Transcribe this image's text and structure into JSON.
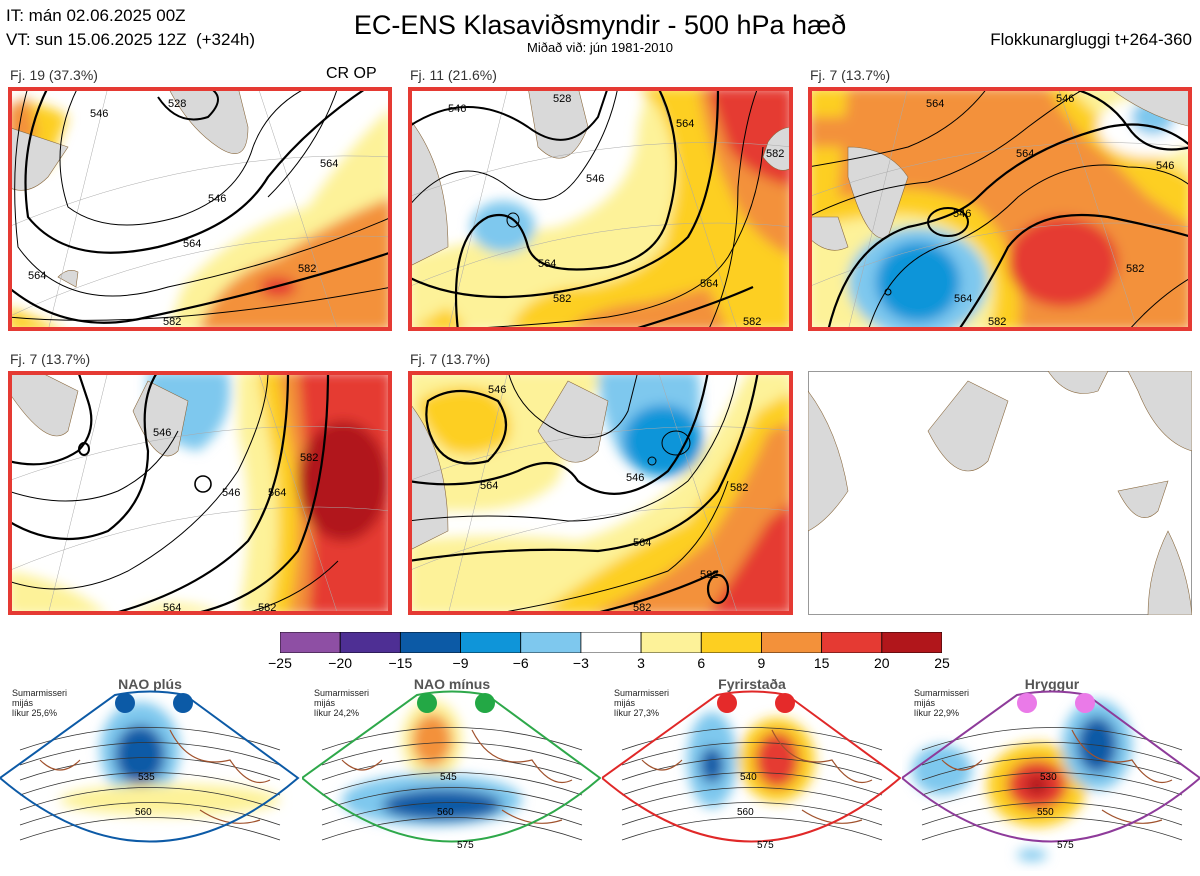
{
  "header": {
    "issue_time": "IT: mán 02.06.2025 00Z",
    "valid_time": "VT: sun 15.06.2025 12Z  (+324h)",
    "title": "EC-ENS Klasaviðsmyndir - 500 hPa hæð",
    "subtitle": "Miðað við: jún 1981-2010",
    "window": "Flokkunargluggi t+264-360"
  },
  "clusters": [
    {
      "label": "Fj. 19 (37.3%)",
      "tag": "CR OP",
      "contours": [
        "546",
        "564",
        "546",
        "564",
        "528",
        "582",
        "564",
        "582"
      ]
    },
    {
      "label": "Fj. 11 (21.6%)",
      "tag": "",
      "contours": [
        "546",
        "528",
        "564",
        "582",
        "564",
        "546",
        "582",
        "564",
        "582"
      ]
    },
    {
      "label": "Fj. 7 (13.7%)",
      "tag": "",
      "contours": [
        "564",
        "546",
        "564",
        "546",
        "564",
        "582",
        "582",
        "546"
      ]
    },
    {
      "label": "Fj. 7 (13.7%)",
      "tag": "",
      "contours": [
        "546",
        "564",
        "582",
        "546",
        "564",
        "582"
      ]
    },
    {
      "label": "Fj. 7 (13.7%)",
      "tag": "",
      "contours": [
        "546",
        "546",
        "564",
        "582",
        "564",
        "582",
        "582"
      ]
    }
  ],
  "colorbar": {
    "ticks": [
      "−25",
      "−20",
      "−15",
      "−9",
      "−6",
      "−3",
      "3",
      "6",
      "9",
      "15",
      "20",
      "25"
    ],
    "colors": [
      "#8e4fa4",
      "#4e2f94",
      "#0c5aa6",
      "#0f95d9",
      "#7ec8ee",
      "#ffffff",
      "#fdf299",
      "#fdcf21",
      "#f3913a",
      "#e53a33",
      "#b1161b"
    ]
  },
  "regimes": [
    {
      "name": "NAO plús",
      "season": "Sumarmisseri",
      "period": "mijás",
      "likelihood": "líkur 25,6%",
      "color": "#0c5aa6",
      "dot_color": "#0c5aa6",
      "contours": [
        "535",
        "560"
      ]
    },
    {
      "name": "NAO mínus",
      "season": "Sumarmisseri",
      "period": "mijás",
      "likelihood": "líkur 24,2%",
      "color": "#2ea84a",
      "dot_color": "#23a845",
      "contours": [
        "545",
        "560",
        "575"
      ]
    },
    {
      "name": "Fyrirstaða",
      "season": "Sumarmisseri",
      "period": "mijás",
      "likelihood": "líkur 27,3%",
      "color": "#e02828",
      "dot_color": "#e52a2a",
      "contours": [
        "540",
        "560",
        "575"
      ]
    },
    {
      "name": "Hryggur",
      "season": "Sumarmisseri",
      "period": "mijás",
      "likelihood": "líkur 22,9%",
      "color": "#8e3b9a",
      "dot_color": "#ea7ae8",
      "contours": [
        "530",
        "550",
        "575"
      ]
    }
  ]
}
